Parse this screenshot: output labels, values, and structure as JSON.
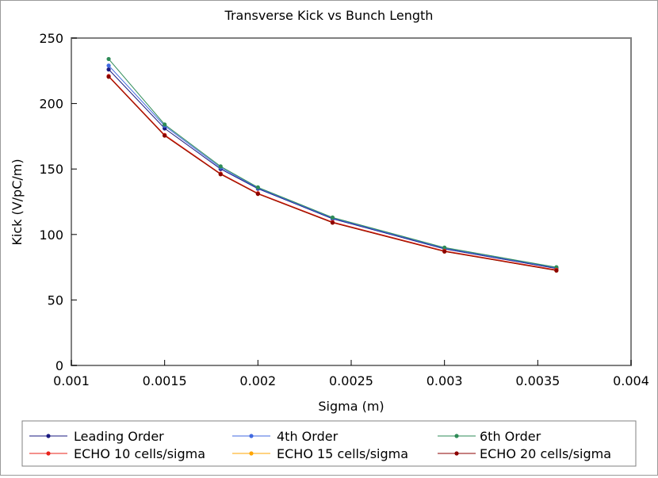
{
  "chart_data": {
    "type": "line",
    "title": "Transverse Kick vs Bunch Length",
    "xlabel": "Sigma (m)",
    "ylabel": "Kick (V/pC/m)",
    "xlim": [
      0.001,
      0.004
    ],
    "ylim": [
      0,
      250
    ],
    "xticks": [
      0.001,
      0.0015,
      0.002,
      0.0025,
      0.003,
      0.0035,
      0.004
    ],
    "xtick_labels": [
      "0.001",
      "0.0015",
      "0.002",
      "0.0025",
      "0.003",
      "0.0035",
      "0.004"
    ],
    "yticks": [
      0,
      50,
      100,
      150,
      200,
      250
    ],
    "ytick_labels": [
      "0",
      "50",
      "100",
      "150",
      "200",
      "250"
    ],
    "grid": false,
    "legend_position": "bottom",
    "x": [
      0.0012,
      0.0015,
      0.0018,
      0.002,
      0.0024,
      0.003,
      0.0036
    ],
    "series": [
      {
        "name": "Leading Order",
        "color": "#1a1a80",
        "values": [
          226,
          181,
          150,
          135,
          112,
          89,
          74
        ]
      },
      {
        "name": "4th Order",
        "color": "#4169e1",
        "values": [
          229,
          183,
          151,
          135.5,
          112.5,
          89.5,
          74.5
        ]
      },
      {
        "name": "6th Order",
        "color": "#2e8b57",
        "values": [
          234,
          184,
          152,
          136,
          113,
          90,
          75
        ]
      },
      {
        "name": "ECHO 10 cells/sigma",
        "color": "#e8221a",
        "values": [
          221,
          176,
          146.5,
          131.5,
          109.5,
          87.5,
          73
        ]
      },
      {
        "name": "ECHO 15 cells/sigma",
        "color": "#ffa500",
        "values": [
          220.5,
          175.5,
          146,
          131,
          109,
          87,
          72.5
        ]
      },
      {
        "name": "ECHO 20 cells/sigma",
        "color": "#8b0000",
        "values": [
          220.5,
          175.5,
          146,
          131,
          109,
          87,
          72.5
        ]
      }
    ]
  }
}
